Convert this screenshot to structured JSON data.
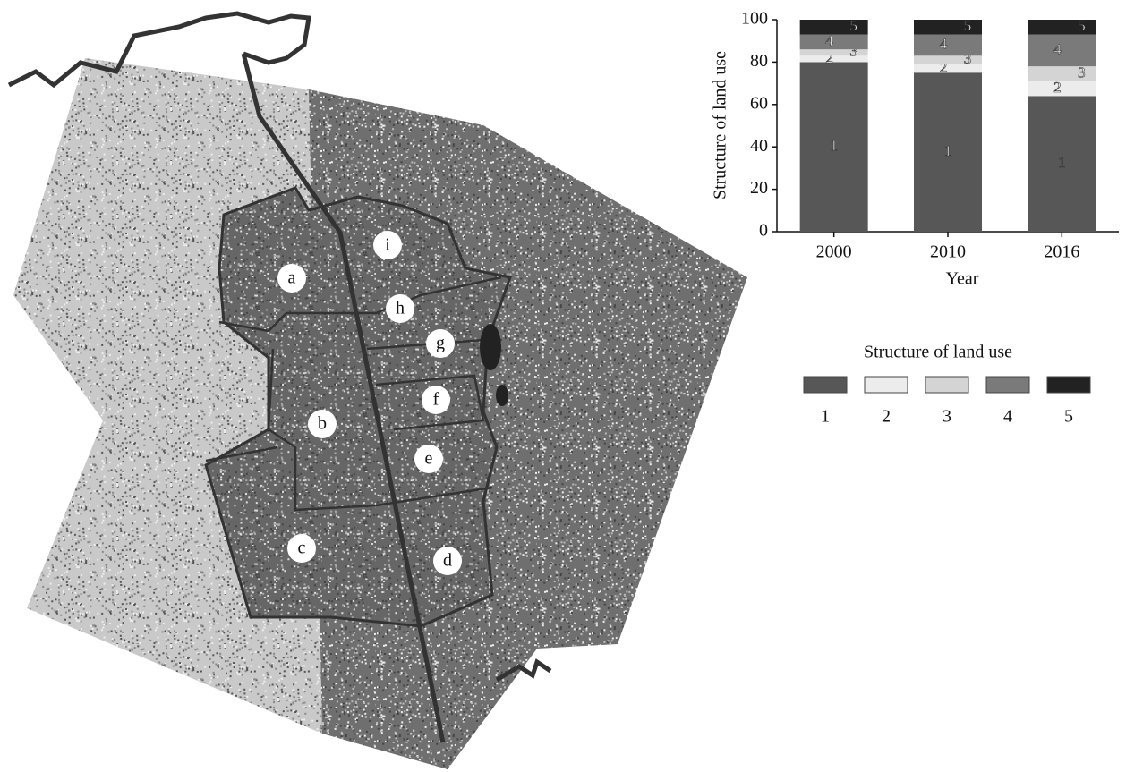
{
  "chart_data": {
    "type": "stacked_bar",
    "y_label": "Structure of land use",
    "x_label": "Year",
    "legend_title": "Structure of land use",
    "categories": [
      "2000",
      "2010",
      "2016"
    ],
    "series": [
      {
        "name": "1",
        "color": "#575757",
        "values": [
          80,
          75,
          64
        ]
      },
      {
        "name": "2",
        "color": "#ececec",
        "values": [
          3,
          4,
          7
        ]
      },
      {
        "name": "3",
        "color": "#d4d4d4",
        "values": [
          3,
          4,
          7
        ]
      },
      {
        "name": "4",
        "color": "#7a7a7a",
        "values": [
          7,
          10,
          15
        ]
      },
      {
        "name": "5",
        "color": "#222222",
        "values": [
          7,
          7,
          7
        ]
      }
    ],
    "ylim": [
      0,
      100
    ],
    "yticks": [
      0,
      20,
      40,
      60,
      80,
      100
    ]
  },
  "map": {
    "district_labels": [
      "a",
      "b",
      "c",
      "d",
      "e",
      "f",
      "g",
      "h",
      "i"
    ]
  }
}
